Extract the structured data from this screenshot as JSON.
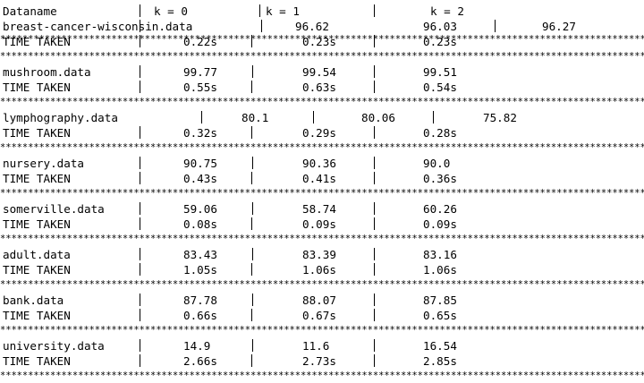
{
  "header": {
    "name": "Dataname",
    "k0": "k = 0",
    "k1": "k = 1",
    "k2": "k = 2"
  },
  "separator": "*********************************************************************************************************************************",
  "rows": [
    {
      "name": "breast-cancer-wisconsin.data",
      "values": [
        "96.62",
        "96.03",
        "96.27"
      ],
      "time_label": "TIME TAKEN",
      "times": [
        "0.22s",
        "0.23s",
        "0.23s"
      ]
    },
    {
      "name": "mushroom.data",
      "values": [
        "99.77",
        "99.54",
        "99.51"
      ],
      "time_label": "TIME TAKEN",
      "times": [
        "0.55s",
        "0.63s",
        "0.54s"
      ]
    },
    {
      "name": "lymphography.data",
      "values": [
        "80.1",
        "80.06",
        "75.82"
      ],
      "time_label": "TIME TAKEN",
      "times": [
        "0.32s",
        "0.29s",
        "0.28s"
      ]
    },
    {
      "name": "nursery.data",
      "values": [
        "90.75",
        "90.36",
        "90.0"
      ],
      "time_label": "TIME TAKEN",
      "times": [
        "0.43s",
        "0.41s",
        "0.36s"
      ]
    },
    {
      "name": "somerville.data",
      "values": [
        "59.06",
        "58.74",
        "60.26"
      ],
      "time_label": "TIME TAKEN",
      "times": [
        "0.08s",
        "0.09s",
        "0.09s"
      ]
    },
    {
      "name": "adult.data",
      "values": [
        "83.43",
        "83.39",
        "83.16"
      ],
      "time_label": "TIME TAKEN",
      "times": [
        "1.05s",
        "1.06s",
        "1.06s"
      ]
    },
    {
      "name": "bank.data",
      "values": [
        "87.78",
        "88.07",
        "87.85"
      ],
      "time_label": "TIME TAKEN",
      "times": [
        "0.66s",
        "0.67s",
        "0.65s"
      ]
    },
    {
      "name": "university.data",
      "values": [
        "14.9",
        "11.6",
        "16.54"
      ],
      "time_label": "TIME TAKEN",
      "times": [
        "2.66s",
        "2.73s",
        "2.85s"
      ]
    }
  ]
}
